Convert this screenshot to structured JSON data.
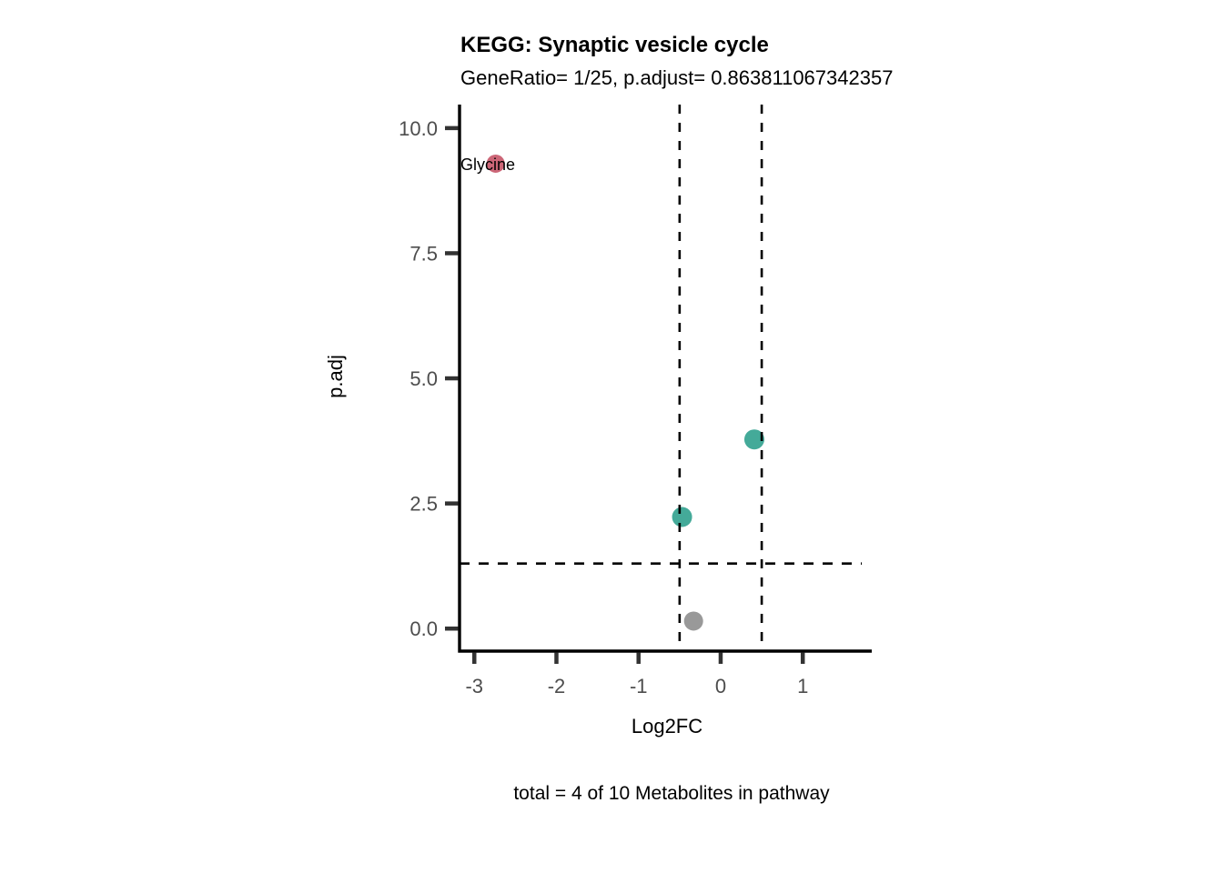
{
  "chart_data": {
    "type": "scatter",
    "title": "KEGG: Synaptic vesicle cycle",
    "subtitle": "GeneRatio= 1/25, p.adjust= 0.863811067342357",
    "xlabel": "Log2FC",
    "ylabel": "p.adj",
    "caption": "total = 4 of 10 Metabolites in pathway",
    "xlim": [
      -3.18,
      1.84
    ],
    "ylim": [
      -0.45,
      10.47
    ],
    "grid": false,
    "legend": "none",
    "x_ticks": {
      "values": [
        -3,
        -2,
        -1,
        0,
        1
      ],
      "labels": [
        "-3",
        "-2",
        "-1",
        "0",
        "1"
      ]
    },
    "y_ticks": {
      "values": [
        0,
        2.5,
        5,
        7.5,
        10
      ],
      "labels": [
        "0.0",
        "2.5",
        "5.0",
        "7.5",
        "10.0"
      ]
    },
    "points": [
      {
        "label": "Glycine",
        "x": -2.74,
        "y": 9.29,
        "color": "#CC6677",
        "radius": 10
      },
      {
        "label": "",
        "x": 0.41,
        "y": 3.78,
        "color": "#44AA99",
        "radius": 11
      },
      {
        "label": "",
        "x": -0.47,
        "y": 2.23,
        "color": "#44AA99",
        "radius": 11
      },
      {
        "label": "",
        "x": -0.33,
        "y": 0.15,
        "color": "#999999",
        "radius": 10.5
      }
    ],
    "vlines": [
      {
        "x": -0.5
      },
      {
        "x": 0.5
      }
    ],
    "hlines": [
      {
        "y": 1.3
      }
    ],
    "line_style": "dashed",
    "colors": {
      "significant_labeled": "#CC6677",
      "significant": "#44AA99",
      "not_significant": "#999999",
      "axis_text": "#4D4D4D",
      "tick_mark": "#333333",
      "axis_line": "#000000",
      "threshold_line": "#000000",
      "background": "#FFFFFF"
    }
  }
}
